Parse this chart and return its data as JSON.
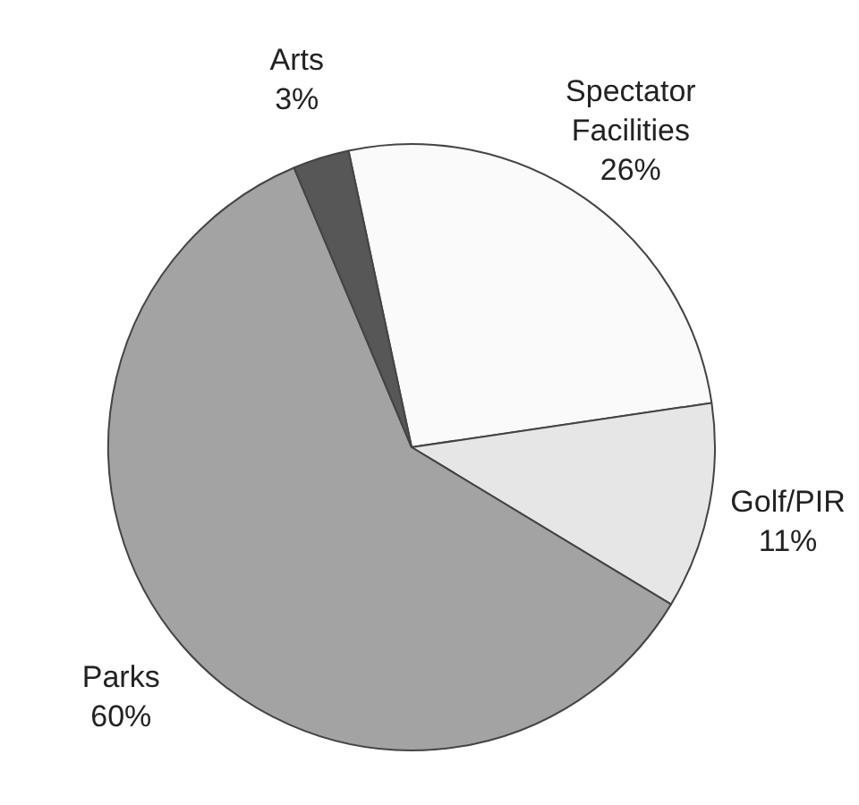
{
  "chart_data": {
    "type": "pie",
    "categories": [
      "Spectator Facilities",
      "Golf/PIR",
      "Parks",
      "Arts"
    ],
    "values": [
      26,
      11,
      60,
      3
    ],
    "colors": [
      "#fafafa",
      "#e6e6e6",
      "#a3a3a3",
      "#575757"
    ],
    "value_labels": [
      "26%",
      "11%",
      "60%",
      "3%"
    ],
    "legend": false
  }
}
